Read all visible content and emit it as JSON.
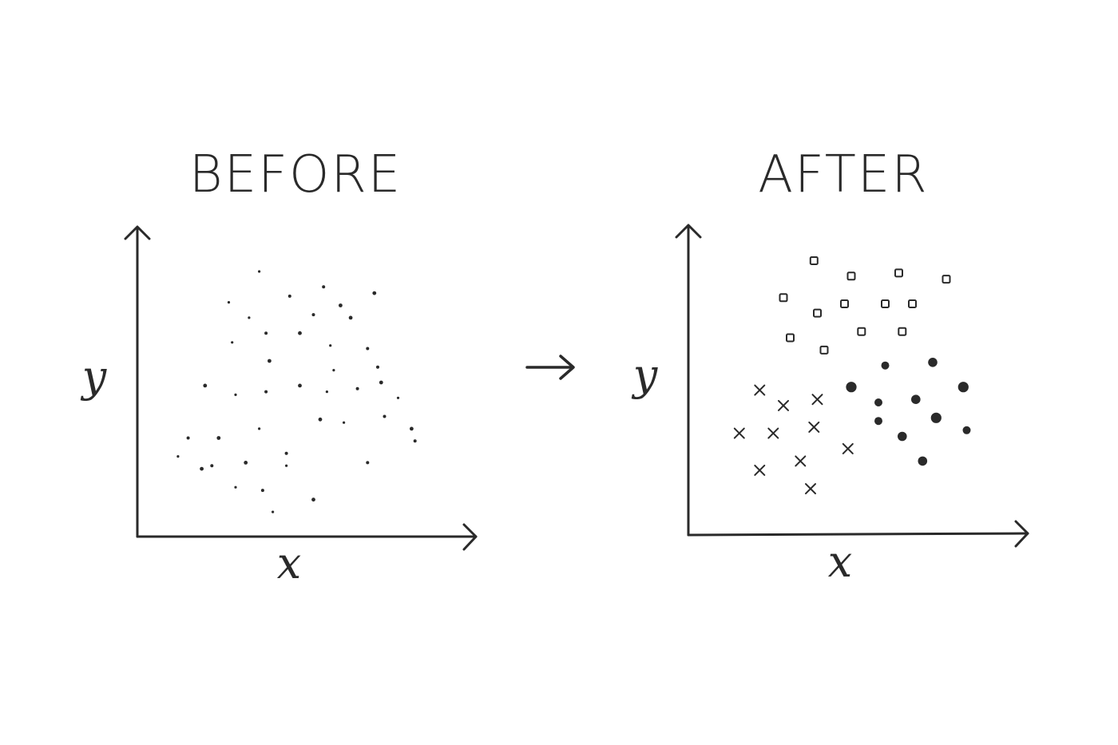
{
  "before": {
    "title": "BEFORE",
    "x_label": "x",
    "y_label": "y",
    "points": [
      {
        "x": 36,
        "y": 86
      },
      {
        "x": 55,
        "y": 81
      },
      {
        "x": 70,
        "y": 79
      },
      {
        "x": 27,
        "y": 76
      },
      {
        "x": 45,
        "y": 78
      },
      {
        "x": 60,
        "y": 75
      },
      {
        "x": 33,
        "y": 71
      },
      {
        "x": 52,
        "y": 72
      },
      {
        "x": 63,
        "y": 71
      },
      {
        "x": 28,
        "y": 63
      },
      {
        "x": 38,
        "y": 66
      },
      {
        "x": 48,
        "y": 66
      },
      {
        "x": 57,
        "y": 62
      },
      {
        "x": 68,
        "y": 61
      },
      {
        "x": 39,
        "y": 57
      },
      {
        "x": 58,
        "y": 54
      },
      {
        "x": 71,
        "y": 55
      },
      {
        "x": 20,
        "y": 49
      },
      {
        "x": 29,
        "y": 46
      },
      {
        "x": 38,
        "y": 47
      },
      {
        "x": 48,
        "y": 49
      },
      {
        "x": 56,
        "y": 47
      },
      {
        "x": 65,
        "y": 48
      },
      {
        "x": 72,
        "y": 50
      },
      {
        "x": 77,
        "y": 45
      },
      {
        "x": 15,
        "y": 32
      },
      {
        "x": 24,
        "y": 32
      },
      {
        "x": 36,
        "y": 35
      },
      {
        "x": 44,
        "y": 27
      },
      {
        "x": 54,
        "y": 38
      },
      {
        "x": 61,
        "y": 37
      },
      {
        "x": 73,
        "y": 39
      },
      {
        "x": 81,
        "y": 35
      },
      {
        "x": 12,
        "y": 26
      },
      {
        "x": 22,
        "y": 23
      },
      {
        "x": 32,
        "y": 24
      },
      {
        "x": 44,
        "y": 23
      },
      {
        "x": 68,
        "y": 24
      },
      {
        "x": 19,
        "y": 22
      },
      {
        "x": 29,
        "y": 16
      },
      {
        "x": 37,
        "y": 15
      },
      {
        "x": 52,
        "y": 12
      },
      {
        "x": 40,
        "y": 8
      },
      {
        "x": 82,
        "y": 31
      }
    ]
  },
  "after": {
    "title": "AFTER",
    "x_label": "x",
    "y_label": "y",
    "clusters": [
      {
        "marker": "square",
        "points": [
          {
            "x": 37,
            "y": 89
          },
          {
            "x": 48,
            "y": 84
          },
          {
            "x": 62,
            "y": 85
          },
          {
            "x": 76,
            "y": 83
          },
          {
            "x": 28,
            "y": 77
          },
          {
            "x": 38,
            "y": 72
          },
          {
            "x": 46,
            "y": 75
          },
          {
            "x": 58,
            "y": 75
          },
          {
            "x": 66,
            "y": 75
          },
          {
            "x": 30,
            "y": 64
          },
          {
            "x": 51,
            "y": 66
          },
          {
            "x": 63,
            "y": 66
          },
          {
            "x": 40,
            "y": 60
          }
        ]
      },
      {
        "marker": "cross",
        "points": [
          {
            "x": 21,
            "y": 47
          },
          {
            "x": 28,
            "y": 42
          },
          {
            "x": 38,
            "y": 44
          },
          {
            "x": 15,
            "y": 33
          },
          {
            "x": 25,
            "y": 33
          },
          {
            "x": 37,
            "y": 35
          },
          {
            "x": 47,
            "y": 28
          },
          {
            "x": 33,
            "y": 24
          },
          {
            "x": 21,
            "y": 21
          },
          {
            "x": 36,
            "y": 15
          }
        ]
      },
      {
        "marker": "dot",
        "points": [
          {
            "x": 58,
            "y": 55
          },
          {
            "x": 72,
            "y": 56
          },
          {
            "x": 48,
            "y": 48
          },
          {
            "x": 56,
            "y": 43
          },
          {
            "x": 67,
            "y": 44
          },
          {
            "x": 81,
            "y": 48
          },
          {
            "x": 56,
            "y": 37
          },
          {
            "x": 63,
            "y": 32
          },
          {
            "x": 73,
            "y": 38
          },
          {
            "x": 82,
            "y": 34
          },
          {
            "x": 69,
            "y": 24
          }
        ]
      }
    ]
  },
  "arrow": {
    "icon": "right-arrow-icon"
  },
  "ink_color": "#2a2a2a"
}
